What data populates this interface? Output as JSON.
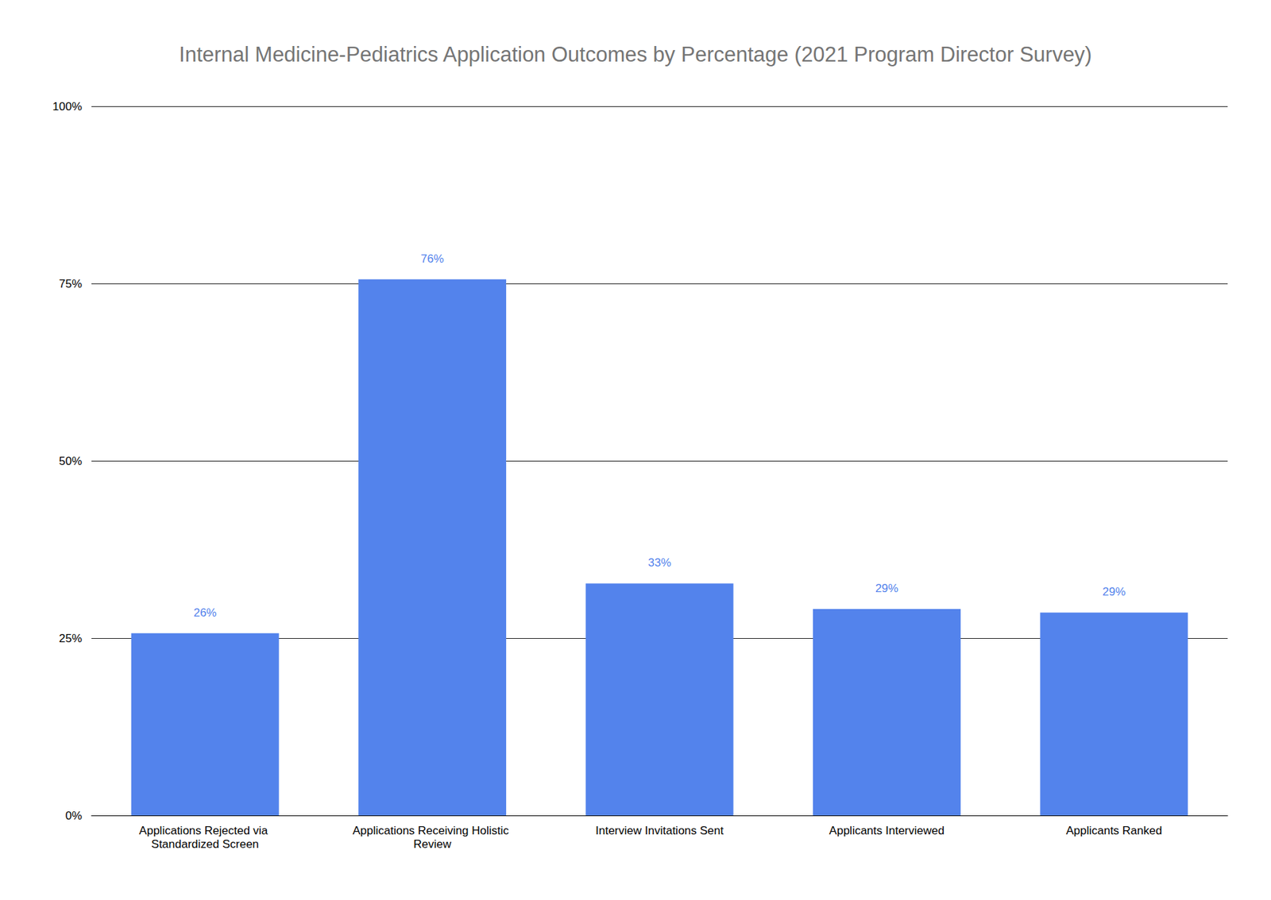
{
  "chart_data": {
    "type": "bar",
    "title": "Internal Medicine-Pediatrics Application Outcomes by Percentage (2021 Program Director Survey)",
    "categories": [
      "Applications Rejected via Standardized Screen",
      "Applications Receiving Holistic Review",
      "Interview Invitations Sent",
      "Applicants Interviewed",
      "Applicants Ranked"
    ],
    "values": [
      25.7,
      75.6,
      32.7,
      29.1,
      28.6
    ],
    "value_labels": [
      "26%",
      "76%",
      "33%",
      "29%",
      "29%"
    ],
    "color": "#5383ec",
    "ylim": [
      0,
      100
    ],
    "yticks": [
      {
        "value": 0,
        "label": "0%"
      },
      {
        "value": 25,
        "label": "25%"
      },
      {
        "value": 50,
        "label": "50%"
      },
      {
        "value": 75,
        "label": "75%"
      },
      {
        "value": 100,
        "label": "100%"
      }
    ],
    "grid": true,
    "data_labels": true
  }
}
